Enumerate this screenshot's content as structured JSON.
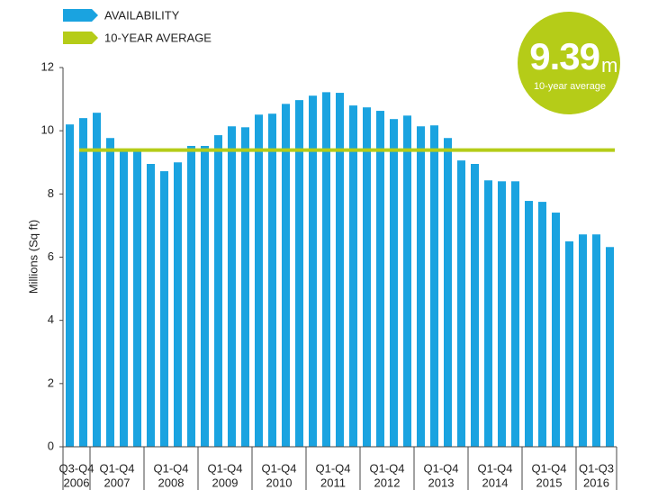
{
  "chart_data": {
    "type": "bar",
    "y_label": "Millions (Sq ft)",
    "series": [
      {
        "name": "AVAILABILITY",
        "color": "#1aa3e0",
        "values": [
          10.2,
          10.4,
          10.57,
          9.77,
          9.43,
          9.35,
          8.95,
          8.72,
          9.0,
          9.52,
          9.52,
          9.86,
          10.14,
          10.11,
          10.51,
          10.54,
          10.85,
          10.97,
          11.11,
          11.22,
          11.2,
          10.8,
          10.74,
          10.63,
          10.37,
          10.48,
          10.14,
          10.17,
          9.77,
          9.06,
          8.95,
          8.43,
          8.4,
          8.4,
          7.78,
          7.75,
          7.41,
          6.5,
          6.72,
          6.72,
          6.32
        ]
      }
    ],
    "average": {
      "name": "10-YEAR AVERAGE",
      "color": "#b5cc18",
      "value": 9.39,
      "unit": "m",
      "caption": "10-year average"
    },
    "groups": [
      {
        "period": "Q3-Q4",
        "year": "2006"
      },
      {
        "period": "Q1-Q4",
        "year": "2007"
      },
      {
        "period": "Q1-Q4",
        "year": "2008"
      },
      {
        "period": "Q1-Q4",
        "year": "2009"
      },
      {
        "period": "Q1-Q4",
        "year": "2010"
      },
      {
        "period": "Q1-Q4",
        "year": "2011"
      },
      {
        "period": "Q1-Q4",
        "year": "2012"
      },
      {
        "period": "Q1-Q4",
        "year": "2013"
      },
      {
        "period": "Q1-Q4",
        "year": "2014"
      },
      {
        "period": "Q1-Q4",
        "year": "2015"
      },
      {
        "period": "Q1-Q3",
        "year": "2016"
      }
    ],
    "ylim": [
      0,
      12
    ],
    "yticks": [
      0,
      2,
      4,
      6,
      8,
      10,
      12
    ]
  }
}
